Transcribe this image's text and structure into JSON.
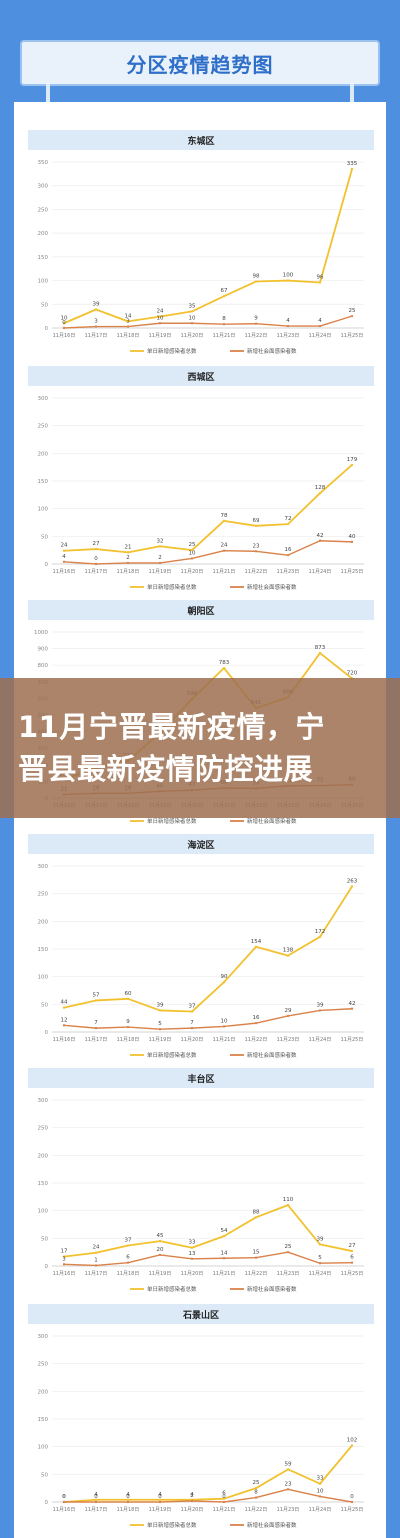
{
  "header": {
    "title": "分区疫情趋势图"
  },
  "overlay": {
    "line1": "11月宁晋最新疫情，宁",
    "line2": "晋县最新疫情防控进展"
  },
  "colors": {
    "series1": "#f2c12e",
    "series2": "#d9824a",
    "axis": "#cccccc",
    "grid": "#ececec"
  },
  "chart_data": [
    {
      "type": "line",
      "title": "东城区",
      "categories": [
        "11月16日",
        "11月17日",
        "11月18日",
        "11月19日",
        "11月20日",
        "11月21日",
        "11月22日",
        "11月23日",
        "11月24日",
        "11月25日"
      ],
      "ylim": [
        0,
        350
      ],
      "yticks": [
        0,
        50,
        100,
        150,
        200,
        250,
        300,
        350
      ],
      "legend_position": "bottom",
      "series": [
        {
          "name": "单日新增感染者总数",
          "values": [
            10,
            39,
            14,
            24,
            35,
            67,
            98,
            100,
            96,
            335
          ]
        },
        {
          "name": "新增社会面感染者数",
          "values": [
            0,
            3,
            3,
            10,
            10,
            8,
            9,
            4,
            4,
            25
          ]
        }
      ]
    },
    {
      "type": "line",
      "title": "西城区",
      "categories": [
        "11月16日",
        "11月17日",
        "11月18日",
        "11月19日",
        "11月20日",
        "11月21日",
        "11月22日",
        "11月23日",
        "11月24日",
        "11月25日"
      ],
      "ylim": [
        0,
        300
      ],
      "yticks": [
        0,
        50,
        100,
        150,
        200,
        250,
        300
      ],
      "legend_position": "bottom",
      "series": [
        {
          "name": "单日新增感染者总数",
          "values": [
            24,
            27,
            21,
            32,
            25,
            78,
            69,
            72,
            128,
            179
          ]
        },
        {
          "name": "新增社会面感染者数",
          "values": [
            4,
            0,
            2,
            2,
            10,
            24,
            23,
            16,
            42,
            40
          ]
        }
      ]
    },
    {
      "type": "line",
      "title": "朝阳区",
      "categories": [
        "11月16日",
        "11月17日",
        "11月18日",
        "11月19日",
        "11月20日",
        "11月21日",
        "11月22日",
        "11月23日",
        "11月24日",
        "11月25日"
      ],
      "ylim": [
        0,
        1000
      ],
      "yticks": [
        0,
        100,
        200,
        300,
        400,
        500,
        600,
        700,
        800,
        900,
        1000
      ],
      "legend_position": "bottom",
      "series": [
        {
          "name": "单日新增感染者总数",
          "values": [
            112,
            181,
            223,
            393,
            596,
            783,
            541,
            606,
            873,
            720
          ]
        },
        {
          "name": "新增社会面感染者数",
          "values": [
            21,
            28,
            28,
            40,
            47,
            60,
            58,
            73,
            75,
            80
          ]
        }
      ]
    },
    {
      "type": "line",
      "title": "海淀区",
      "categories": [
        "11月16日",
        "11月17日",
        "11月18日",
        "11月19日",
        "11月20日",
        "11月21日",
        "11月22日",
        "11月23日",
        "11月24日",
        "11月25日"
      ],
      "ylim": [
        0,
        300
      ],
      "yticks": [
        0,
        50,
        100,
        150,
        200,
        250,
        300
      ],
      "legend_position": "bottom",
      "series": [
        {
          "name": "单日新增感染者总数",
          "values": [
            44,
            57,
            60,
            39,
            37,
            90,
            154,
            138,
            172,
            263
          ]
        },
        {
          "name": "新增社会面感染者数",
          "values": [
            12,
            7,
            9,
            5,
            7,
            10,
            16,
            29,
            39,
            42
          ]
        }
      ]
    },
    {
      "type": "line",
      "title": "丰台区",
      "categories": [
        "11月16日",
        "11月17日",
        "11月18日",
        "11月19日",
        "11月20日",
        "11月21日",
        "11月22日",
        "11月23日",
        "11月24日",
        "11月25日"
      ],
      "ylim": [
        0,
        300
      ],
      "yticks": [
        0,
        50,
        100,
        150,
        200,
        250,
        300
      ],
      "legend_position": "bottom",
      "series": [
        {
          "name": "单日新增感染者总数",
          "values": [
            17,
            24,
            37,
            45,
            33,
            54,
            88,
            110,
            39,
            27
          ]
        },
        {
          "name": "新增社会面感染者数",
          "values": [
            3,
            1,
            6,
            20,
            13,
            14,
            15,
            25,
            5,
            6
          ]
        }
      ]
    },
    {
      "type": "line",
      "title": "石景山区",
      "categories": [
        "11月16日",
        "11月17日",
        "11月18日",
        "11月19日",
        "11月20日",
        "11月21日",
        "11月22日",
        "11月23日",
        "11月24日",
        "11月25日"
      ],
      "ylim": [
        0,
        300
      ],
      "yticks": [
        0,
        50,
        100,
        150,
        200,
        250,
        300
      ],
      "legend_position": "bottom",
      "series": [
        {
          "name": "单日新增感染者总数",
          "values": [
            0,
            4,
            4,
            4,
            4,
            6,
            25,
            59,
            33,
            102
          ]
        },
        {
          "name": "新增社会面感染者数",
          "values": [
            0,
            0,
            0,
            0,
            2,
            0,
            8,
            23,
            10,
            0
          ]
        }
      ]
    }
  ]
}
